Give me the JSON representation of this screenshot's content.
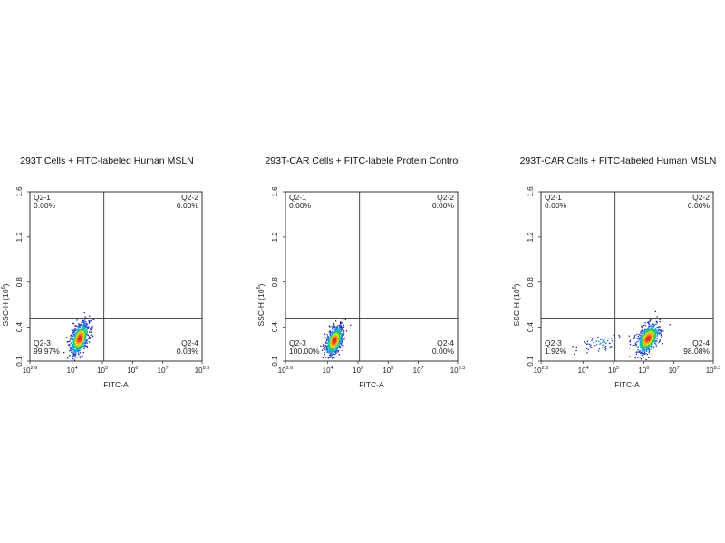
{
  "chart_data": [
    {
      "type": "scatter",
      "title": "293T Cells + FITC-labeled Human MSLN",
      "xlabel": "FITC-A",
      "ylabel_main": "SSC-H (10",
      "ylabel_sup": "6",
      "ylabel_end": ")",
      "x_scale": "log",
      "xlim": [
        2.6,
        8.3
      ],
      "ylim": [
        0.1,
        1.6
      ],
      "x_ticks": [
        {
          "base": "10",
          "exp": "2.6"
        },
        {
          "base": "10",
          "exp": "4"
        },
        {
          "base": "10",
          "exp": "5"
        },
        {
          "base": "10",
          "exp": "6"
        },
        {
          "base": "10",
          "exp": "7"
        },
        {
          "base": "10",
          "exp": "8.3"
        }
      ],
      "x_tick_values": [
        2.6,
        4,
        5,
        6,
        7,
        8.3
      ],
      "y_ticks": [
        "0.1",
        "0.4",
        "0.8",
        "1.2",
        "1.6"
      ],
      "y_tick_values": [
        0.1,
        0.4,
        0.8,
        1.2,
        1.6
      ],
      "gate": {
        "x": 5.05,
        "y": 0.48
      },
      "quadrants": [
        {
          "name": "Q2-1",
          "value": "0.00%"
        },
        {
          "name": "Q2-2",
          "value": "0.00%"
        },
        {
          "name": "Q2-3",
          "value": "99.97%"
        },
        {
          "name": "Q2-4",
          "value": "0.03%"
        }
      ],
      "populations": [
        {
          "center_x": 4.25,
          "center_y": 0.3,
          "spread_x": 0.16,
          "spread_y": 0.065,
          "weight": 1.0
        }
      ]
    },
    {
      "type": "scatter",
      "title": "293T-CAR Cells + FITC-labele Protein Control",
      "xlabel": "FITC-A",
      "ylabel_main": "SSC-H (10",
      "ylabel_sup": "6",
      "ylabel_end": ")",
      "x_scale": "log",
      "xlim": [
        2.6,
        8.3
      ],
      "ylim": [
        0.1,
        1.6
      ],
      "x_ticks": [
        {
          "base": "10",
          "exp": "2.6"
        },
        {
          "base": "10",
          "exp": "4"
        },
        {
          "base": "10",
          "exp": "5"
        },
        {
          "base": "10",
          "exp": "6"
        },
        {
          "base": "10",
          "exp": "7"
        },
        {
          "base": "10",
          "exp": "8.3"
        }
      ],
      "x_tick_values": [
        2.6,
        4,
        5,
        6,
        7,
        8.3
      ],
      "y_ticks": [
        "0.1",
        "0.4",
        "0.8",
        "1.2",
        "1.6"
      ],
      "y_tick_values": [
        0.1,
        0.4,
        0.8,
        1.2,
        1.6
      ],
      "gate": {
        "x": 5.05,
        "y": 0.48
      },
      "quadrants": [
        {
          "name": "Q2-1",
          "value": "0.00%"
        },
        {
          "name": "Q2-2",
          "value": "0.00%"
        },
        {
          "name": "Q2-3",
          "value": "100.00%"
        },
        {
          "name": "Q2-4",
          "value": "0.00%"
        }
      ],
      "populations": [
        {
          "center_x": 4.22,
          "center_y": 0.28,
          "spread_x": 0.15,
          "spread_y": 0.06,
          "weight": 1.0
        }
      ]
    },
    {
      "type": "scatter",
      "title": "293T-CAR Cells + FITC-labeled Human MSLN",
      "xlabel": "FITC-A",
      "ylabel_main": "SSC-H (10",
      "ylabel_sup": "6",
      "ylabel_end": ")",
      "x_scale": "log",
      "xlim": [
        2.6,
        8.3
      ],
      "ylim": [
        0.1,
        1.6
      ],
      "x_ticks": [
        {
          "base": "10",
          "exp": "2.6"
        },
        {
          "base": "10",
          "exp": "4"
        },
        {
          "base": "10",
          "exp": "5"
        },
        {
          "base": "10",
          "exp": "6"
        },
        {
          "base": "10",
          "exp": "7"
        },
        {
          "base": "10",
          "exp": "8.3"
        }
      ],
      "x_tick_values": [
        2.6,
        4,
        5,
        6,
        7,
        8.3
      ],
      "y_ticks": [
        "0.1",
        "0.4",
        "0.8",
        "1.2",
        "1.6"
      ],
      "y_tick_values": [
        0.1,
        0.4,
        0.8,
        1.2,
        1.6
      ],
      "gate": {
        "x": 5.05,
        "y": 0.48
      },
      "quadrants": [
        {
          "name": "Q2-1",
          "value": "0.00%"
        },
        {
          "name": "Q2-2",
          "value": "0.00%"
        },
        {
          "name": "Q2-3",
          "value": "1.92%"
        },
        {
          "name": "Q2-4",
          "value": "98.08%"
        }
      ],
      "populations": [
        {
          "center_x": 6.15,
          "center_y": 0.3,
          "spread_x": 0.2,
          "spread_y": 0.06,
          "weight": 0.9
        },
        {
          "center_x": 4.6,
          "center_y": 0.27,
          "spread_x": 0.35,
          "spread_y": 0.04,
          "weight": 0.1
        }
      ]
    }
  ]
}
